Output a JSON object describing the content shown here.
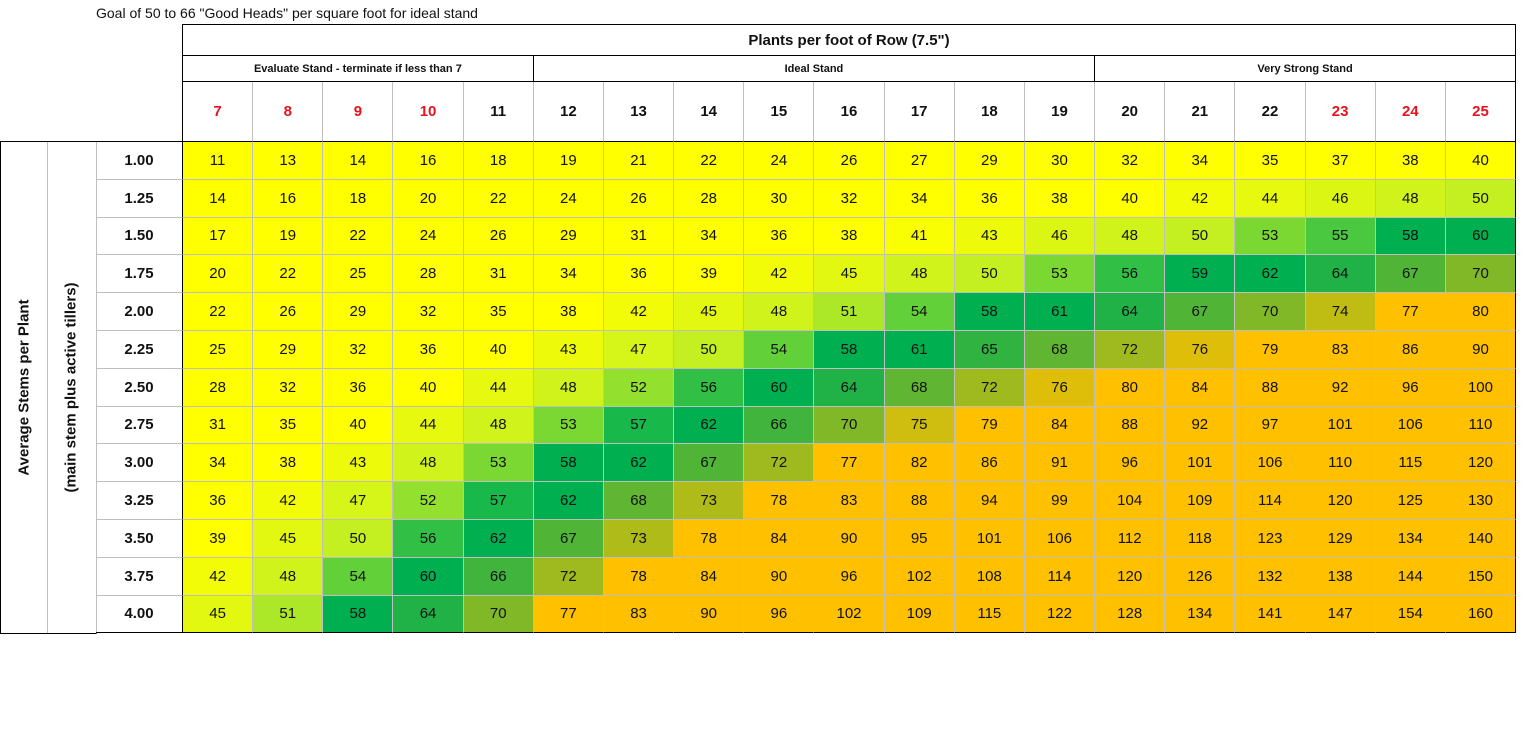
{
  "note": "Goal of 50 to 66 \"Good Heads\" per square foot for ideal stand",
  "header": {
    "title": "Plants per foot of Row (7.5\")",
    "groups": [
      {
        "label": "Evaluate Stand - terminate if less than 7",
        "span": 5
      },
      {
        "label": "Ideal Stand",
        "span": 8
      },
      {
        "label": "Very Strong Stand",
        "span": 6
      }
    ],
    "columns": [
      "7",
      "8",
      "9",
      "10",
      "11",
      "12",
      "13",
      "14",
      "15",
      "16",
      "17",
      "18",
      "19",
      "20",
      "21",
      "22",
      "23",
      "24",
      "25"
    ],
    "red_columns": [
      "7",
      "8",
      "9",
      "10",
      "23",
      "24",
      "25"
    ]
  },
  "row_axis": {
    "label": "Average Stems per Plant",
    "sublabel": "(main stem plus active tillers)"
  },
  "rows": [
    {
      "label": "1.00",
      "values": [
        "11",
        "13",
        "14",
        "16",
        "18",
        "19",
        "21",
        "22",
        "24",
        "26",
        "27",
        "29",
        "30",
        "32",
        "34",
        "35",
        "37",
        "38",
        "40"
      ]
    },
    {
      "label": "1.25",
      "values": [
        "14",
        "16",
        "18",
        "20",
        "22",
        "24",
        "26",
        "28",
        "30",
        "32",
        "34",
        "36",
        "38",
        "40",
        "42",
        "44",
        "46",
        "48",
        "50"
      ]
    },
    {
      "label": "1.50",
      "values": [
        "17",
        "19",
        "22",
        "24",
        "26",
        "29",
        "31",
        "34",
        "36",
        "38",
        "41",
        "43",
        "46",
        "48",
        "50",
        "53",
        "55",
        "58",
        "60"
      ]
    },
    {
      "label": "1.75",
      "values": [
        "20",
        "22",
        "25",
        "28",
        "31",
        "34",
        "36",
        "39",
        "42",
        "45",
        "48",
        "50",
        "53",
        "56",
        "59",
        "62",
        "64",
        "67",
        "70"
      ]
    },
    {
      "label": "2.00",
      "values": [
        "22",
        "26",
        "29",
        "32",
        "35",
        "38",
        "42",
        "45",
        "48",
        "51",
        "54",
        "58",
        "61",
        "64",
        "67",
        "70",
        "74",
        "77",
        "80"
      ]
    },
    {
      "label": "2.25",
      "values": [
        "25",
        "29",
        "32",
        "36",
        "40",
        "43",
        "47",
        "50",
        "54",
        "58",
        "61",
        "65",
        "68",
        "72",
        "76",
        "79",
        "83",
        "86",
        "90"
      ]
    },
    {
      "label": "2.50",
      "values": [
        "28",
        "32",
        "36",
        "40",
        "44",
        "48",
        "52",
        "56",
        "60",
        "64",
        "68",
        "72",
        "76",
        "80",
        "84",
        "88",
        "92",
        "96",
        "100"
      ]
    },
    {
      "label": "2.75",
      "values": [
        "31",
        "35",
        "40",
        "44",
        "48",
        "53",
        "57",
        "62",
        "66",
        "70",
        "75",
        "79",
        "84",
        "88",
        "92",
        "97",
        "101",
        "106",
        "110"
      ]
    },
    {
      "label": "3.00",
      "values": [
        "34",
        "38",
        "43",
        "48",
        "53",
        "58",
        "62",
        "67",
        "72",
        "77",
        "82",
        "86",
        "91",
        "96",
        "101",
        "106",
        "110",
        "115",
        "120"
      ]
    },
    {
      "label": "3.25",
      "values": [
        "36",
        "42",
        "47",
        "52",
        "57",
        "62",
        "68",
        "73",
        "78",
        "83",
        "88",
        "94",
        "99",
        "104",
        "109",
        "114",
        "120",
        "125",
        "130"
      ]
    },
    {
      "label": "3.50",
      "values": [
        "39",
        "45",
        "50",
        "56",
        "62",
        "67",
        "73",
        "78",
        "84",
        "90",
        "95",
        "101",
        "106",
        "112",
        "118",
        "123",
        "129",
        "134",
        "140"
      ]
    },
    {
      "label": "3.75",
      "values": [
        "42",
        "48",
        "54",
        "60",
        "66",
        "72",
        "78",
        "84",
        "90",
        "96",
        "102",
        "108",
        "114",
        "120",
        "126",
        "132",
        "138",
        "144",
        "150"
      ]
    },
    {
      "label": "4.00",
      "values": [
        "45",
        "51",
        "58",
        "64",
        "70",
        "77",
        "83",
        "90",
        "96",
        "102",
        "109",
        "115",
        "122",
        "128",
        "134",
        "141",
        "147",
        "154",
        "160"
      ]
    }
  ],
  "colors": {
    "yellow": "#ffff00",
    "orange": "#ffc000",
    "green": "#00b050",
    "gridline": "#bfbfbf",
    "border": "#000000",
    "red_text": "#e8121d"
  }
}
